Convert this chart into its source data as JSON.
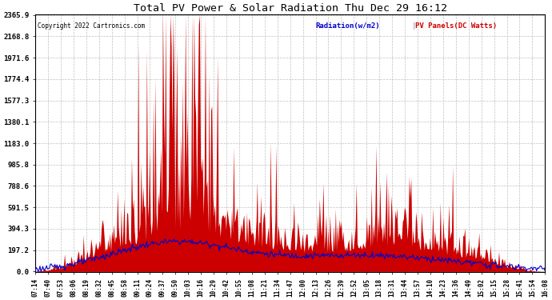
{
  "title": "Total PV Power & Solar Radiation Thu Dec 29 16:12",
  "copyright": "Copyright 2022 Cartronics.com",
  "legend_radiation": "Radiation(w/m2)",
  "legend_pv": "PV Panels(DC Watts)",
  "y_ticks": [
    0.0,
    197.2,
    394.3,
    591.5,
    788.6,
    985.8,
    1183.0,
    1380.1,
    1577.3,
    1774.4,
    1971.6,
    2168.8,
    2365.9
  ],
  "x_labels": [
    "07:14",
    "07:40",
    "07:53",
    "08:06",
    "08:19",
    "08:32",
    "08:45",
    "08:58",
    "09:11",
    "09:24",
    "09:37",
    "09:50",
    "10:03",
    "10:16",
    "10:29",
    "10:42",
    "10:55",
    "11:08",
    "11:21",
    "11:34",
    "11:47",
    "12:00",
    "12:13",
    "12:26",
    "12:39",
    "12:52",
    "13:05",
    "13:18",
    "13:31",
    "13:44",
    "13:57",
    "14:10",
    "14:23",
    "14:36",
    "14:49",
    "15:02",
    "15:15",
    "15:28",
    "15:41",
    "15:54",
    "16:08"
  ],
  "background_color": "#ffffff",
  "grid_color": "#b0b0b0",
  "pv_fill_color": "#cc0000",
  "radiation_line_color": "#0000cc",
  "title_color": "#000000",
  "copyright_color": "#000000",
  "y_max": 2365.9,
  "radiation_scale": 300.0,
  "n_points": 541
}
